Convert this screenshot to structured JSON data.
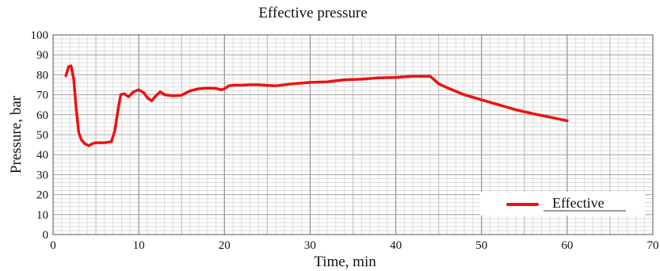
{
  "chart_data": {
    "type": "line",
    "title": "Effective pressure",
    "xlabel": "Time, min",
    "ylabel": "Pressure, bar",
    "xlim": [
      0,
      70
    ],
    "ylim": [
      0,
      100
    ],
    "xticks": [
      0,
      10,
      20,
      30,
      40,
      50,
      60,
      70
    ],
    "yticks": [
      0,
      10,
      20,
      30,
      40,
      50,
      60,
      70,
      80,
      90,
      100
    ],
    "grid": true,
    "legend_position": "bottom-right",
    "series": [
      {
        "name": "Effective",
        "color": "#ee1111",
        "x": [
          1.5,
          1.8,
          2.1,
          2.4,
          2.7,
          3.0,
          3.3,
          3.7,
          4.2,
          4.6,
          5.0,
          6.0,
          6.8,
          7.2,
          7.6,
          7.9,
          8.3,
          8.8,
          9.4,
          10.0,
          10.6,
          11.0,
          11.5,
          12.0,
          12.5,
          13.0,
          14.0,
          15.0,
          16.0,
          17.0,
          18.0,
          19.0,
          19.6,
          20.0,
          20.5,
          21.0,
          22.0,
          23.0,
          24.0,
          25.0,
          26.0,
          28.0,
          30.0,
          32.0,
          34.0,
          36.0,
          38.0,
          40.0,
          42.0,
          43.0,
          44.0,
          44.5,
          45.0,
          46.0,
          48.0,
          50.0,
          52.0,
          54.0,
          56.0,
          58.0,
          60.0
        ],
        "y": [
          79.5,
          84.0,
          84.5,
          78.0,
          63.0,
          51.0,
          47.5,
          45.5,
          44.5,
          45.5,
          46.0,
          46.0,
          46.5,
          52.0,
          63.0,
          70.0,
          70.5,
          69.0,
          71.5,
          72.5,
          71.0,
          68.5,
          67.0,
          69.5,
          71.5,
          70.0,
          69.5,
          69.8,
          72.0,
          73.0,
          73.3,
          73.2,
          72.5,
          73.0,
          74.5,
          74.8,
          74.8,
          75.0,
          75.0,
          74.7,
          74.5,
          75.5,
          76.2,
          76.5,
          77.5,
          77.8,
          78.5,
          78.7,
          79.3,
          79.3,
          79.3,
          77.5,
          75.5,
          73.5,
          70.0,
          67.5,
          65.0,
          62.5,
          60.5,
          58.8,
          57.0
        ]
      }
    ]
  }
}
